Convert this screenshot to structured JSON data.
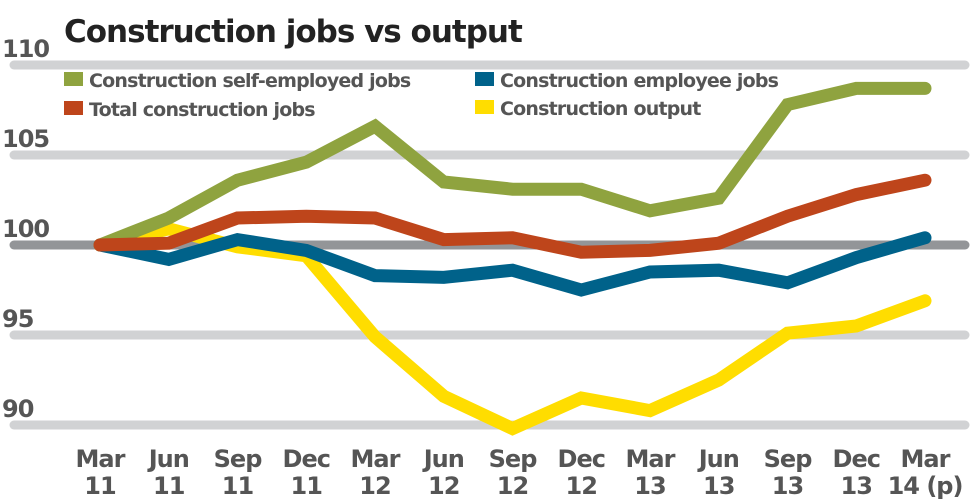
{
  "chart_data": {
    "type": "line",
    "title": "Construction jobs vs output",
    "categories": [
      "Mar|11",
      "Jun|11",
      "Sep|11",
      "Dec|11",
      "Mar|12",
      "Jun|12",
      "Sep|12",
      "Dec|12",
      "Mar|13",
      "Jun|13",
      "Sep|13",
      "Dec|13",
      "Mar|14 (p)"
    ],
    "ylim": [
      90,
      110
    ],
    "yticks": [
      90,
      95,
      100,
      105,
      110
    ],
    "grid": true,
    "legend": "top-left",
    "series": [
      {
        "name": "Construction output",
        "color": "#FFDD00",
        "values": [
          100,
          100.9,
          99.9,
          99.4,
          94.9,
          91.6,
          89.8,
          91.5,
          90.8,
          92.5,
          95.1,
          95.5,
          96.9
        ]
      },
      {
        "name": "Construction employee jobs",
        "color": "#00628A",
        "values": [
          100,
          99.2,
          100.3,
          99.7,
          98.3,
          98.2,
          98.6,
          97.5,
          98.5,
          98.6,
          97.9,
          99.3,
          100.4
        ]
      },
      {
        "name": "Construction self-employed jobs",
        "color": "#8FA33F",
        "values": [
          100,
          101.5,
          103.6,
          104.6,
          106.6,
          103.5,
          103.1,
          103.1,
          101.9,
          102.6,
          107.8,
          108.7,
          108.7
        ]
      },
      {
        "name": "Total construction jobs",
        "color": "#BE451B",
        "values": [
          100,
          100.1,
          101.5,
          101.6,
          101.5,
          100.3,
          100.4,
          99.6,
          99.7,
          100.1,
          101.6,
          102.8,
          103.6
        ]
      }
    ]
  }
}
